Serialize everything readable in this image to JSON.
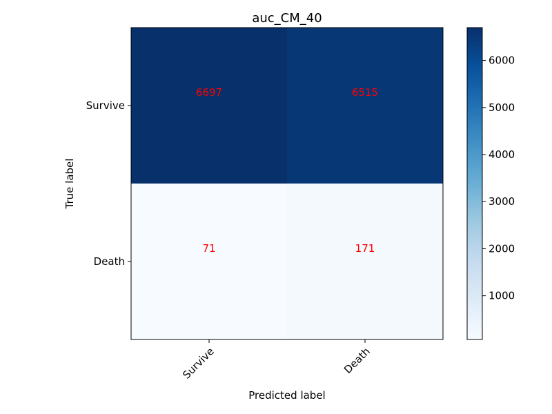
{
  "chart_data": {
    "type": "heatmap",
    "title": "auc_CM_40",
    "xlabel": "Predicted label",
    "ylabel": "True label",
    "x_categories": [
      "Survive",
      "Death"
    ],
    "y_categories": [
      "Survive",
      "Death"
    ],
    "values": [
      [
        6697,
        6515
      ],
      [
        71,
        171
      ]
    ],
    "colormap": "Blues",
    "colorbar": {
      "min": 71,
      "max": 6697,
      "ticks": [
        1000,
        2000,
        3000,
        4000,
        5000,
        6000
      ]
    },
    "cell_label_color": "#ff0000",
    "xtick_rotation_deg": 45
  }
}
